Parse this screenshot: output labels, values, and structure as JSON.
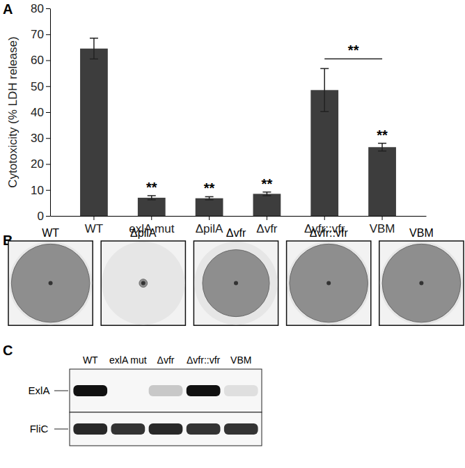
{
  "chart_data": {
    "type": "bar",
    "title": "A",
    "y_label": "Cytotoxicity (% LDH release)",
    "categories": [
      "WT",
      "exlA mut",
      "ΔpilA",
      "Δvfr",
      "Δvfr::vfr",
      "VBM"
    ],
    "values": [
      64.5,
      7,
      6.8,
      8.5,
      48.5,
      26.5
    ],
    "errors": [
      4,
      0.8,
      0.6,
      0.7,
      8.3,
      1.5
    ],
    "significance": [
      null,
      "**",
      "**",
      "**",
      null,
      "**"
    ],
    "comparisons": [
      {
        "from": 4,
        "to": 5,
        "label": "**"
      }
    ],
    "color": "#3d3d3d",
    "ylim": [
      0,
      80
    ],
    "yticks": [
      0,
      10,
      20,
      30,
      40,
      50,
      60,
      70,
      80
    ],
    "grid": false
  },
  "panel_b": {
    "title": "B",
    "panels": [
      {
        "label": "WT",
        "zone_size": 0.96
      },
      {
        "label": "ΔpilA",
        "zone_size": 0.1
      },
      {
        "label": "Δvfr",
        "zone_size": 0.82
      },
      {
        "label": "Δvfr::vfr",
        "zone_size": 0.96
      },
      {
        "label": "VBM",
        "zone_size": 0.96
      }
    ]
  },
  "panel_c": {
    "title": "C",
    "lanes": [
      "WT",
      "exlA mut",
      "Δvfr",
      "Δvfr::vfr",
      "VBM"
    ],
    "rows": [
      {
        "label": "ExlA",
        "intensity": [
          1,
          0,
          0.2,
          1,
          0.1
        ]
      },
      {
        "label": "FliC",
        "intensity": [
          0.9,
          0.85,
          0.9,
          0.85,
          0.85
        ]
      }
    ]
  }
}
